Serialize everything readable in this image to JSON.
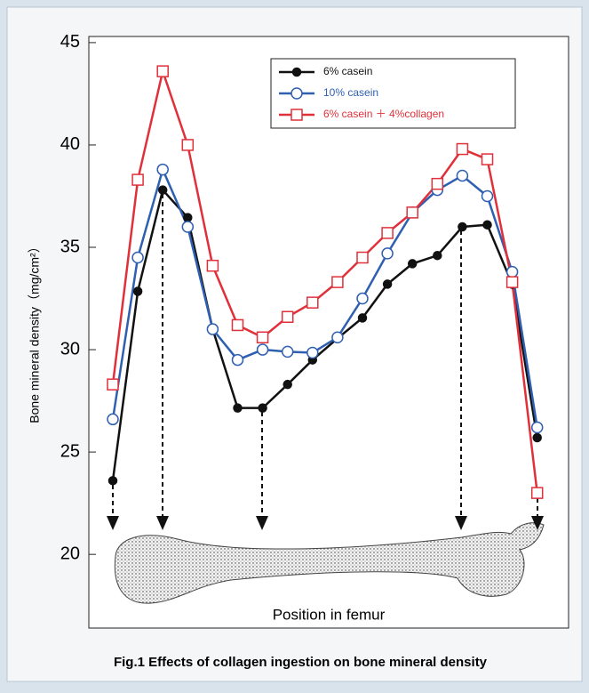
{
  "chart_data": {
    "type": "line",
    "y_label": "Bone mineral density（mg/cm²）",
    "x_label": "Position in femur",
    "caption": "Fig.1 Effects of collagen ingestion on bone mineral density",
    "categories": [
      null,
      null,
      null,
      null,
      null,
      null,
      null,
      null,
      null,
      null,
      null,
      null,
      null,
      null,
      null,
      null,
      null,
      null
    ],
    "series": [
      {
        "name": "6% casein",
        "color": "#111111",
        "marker": "filled-circle",
        "values": [
          23.6,
          32.85,
          37.8,
          36.45,
          31.0,
          27.15,
          27.15,
          28.3,
          29.5,
          30.55,
          31.55,
          33.2,
          34.2,
          34.6,
          36.0,
          36.1,
          33.2,
          25.7
        ]
      },
      {
        "name": "10% casein",
        "color": "#2f5fb0",
        "marker": "open-circle",
        "values": [
          26.6,
          34.5,
          38.8,
          36.0,
          31.0,
          29.5,
          30.0,
          29.9,
          29.85,
          30.6,
          32.5,
          34.7,
          36.7,
          37.8,
          38.5,
          37.5,
          33.8,
          26.2
        ]
      },
      {
        "name": "6% casein ＋ 4%collagen",
        "color": "#e0303a",
        "marker": "open-square",
        "values": [
          28.3,
          38.3,
          43.6,
          40.0,
          34.1,
          31.2,
          30.6,
          31.6,
          32.3,
          33.3,
          34.5,
          35.7,
          36.7,
          38.1,
          39.8,
          39.3,
          33.3,
          23.0
        ]
      }
    ],
    "ylim": [
      16.4,
      45.3
    ],
    "yticks": [
      20,
      25,
      30,
      35,
      40,
      45
    ]
  }
}
